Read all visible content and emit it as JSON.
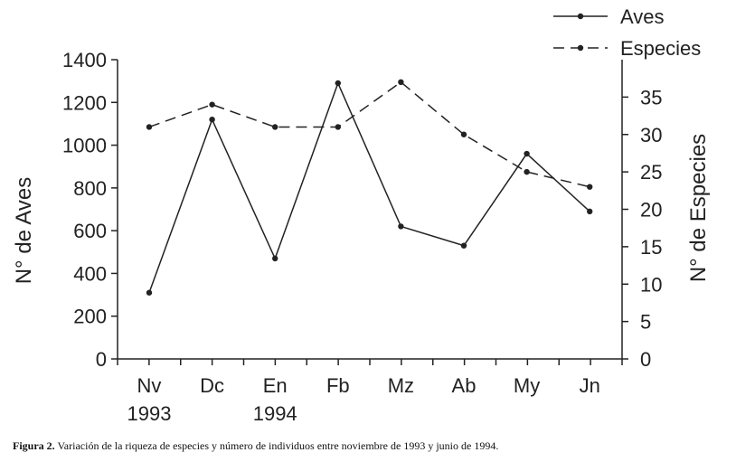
{
  "caption": {
    "label": "Figura 2.",
    "text": "Variación de la riqueza de especies y número de individuos entre noviembre de 1993 y junio de 1994."
  },
  "chart_data": {
    "type": "line",
    "categories": [
      [
        "Nv",
        "1993"
      ],
      [
        "Dc"
      ],
      [
        "En",
        "1994"
      ],
      [
        "Fb"
      ],
      [
        "Mz"
      ],
      [
        "Ab"
      ],
      [
        "My"
      ],
      [
        "Jn"
      ]
    ],
    "series": [
      {
        "name": "Aves",
        "axis": "left",
        "style": "solid",
        "values": [
          310,
          1120,
          470,
          1290,
          620,
          530,
          960,
          690
        ]
      },
      {
        "name": "Especies",
        "axis": "right",
        "style": "dashed",
        "values": [
          31,
          34,
          31,
          31,
          37,
          30,
          25,
          23
        ]
      }
    ],
    "y_left": {
      "label": "N° de Aves",
      "ylim": [
        0,
        1400
      ],
      "ticks": [
        0,
        200,
        400,
        600,
        800,
        1000,
        1200,
        1400
      ]
    },
    "y_right": {
      "label": "N° de Especies",
      "ylim": [
        0,
        40
      ],
      "ticks": [
        0,
        5,
        10,
        15,
        20,
        25,
        30,
        35
      ]
    },
    "legend_position": "top-right",
    "grid": false,
    "colors": {
      "line": "#222222",
      "background": "#ffffff"
    }
  }
}
